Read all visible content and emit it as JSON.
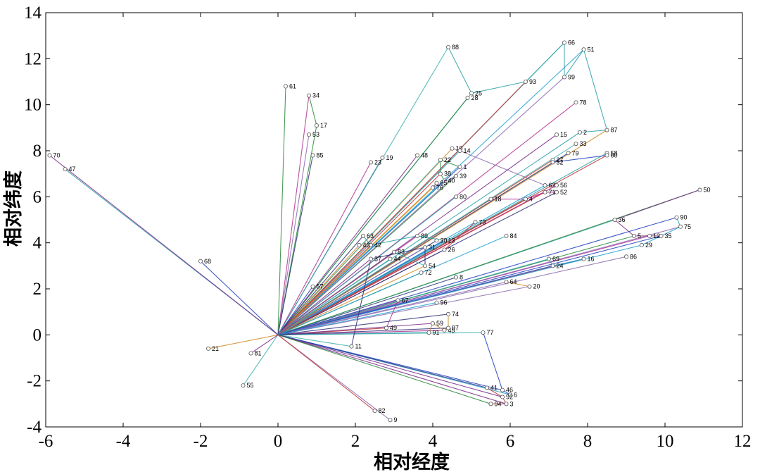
{
  "chart_data": {
    "type": "scatter",
    "xlabel": "相对经度",
    "ylabel": "相对纬度",
    "xlim": [
      -6,
      12
    ],
    "ylim": [
      -4,
      14
    ],
    "xticks": [
      -6,
      -4,
      -2,
      0,
      2,
      4,
      6,
      8,
      10,
      12
    ],
    "yticks": [
      -4,
      -2,
      0,
      2,
      4,
      6,
      8,
      10,
      12,
      14
    ],
    "grid": false,
    "origin": [
      0,
      0
    ],
    "line_colors": [
      "#1f3fbf",
      "#2aa0a8",
      "#7a2a8a",
      "#c03030",
      "#2a8a3a",
      "#1fa0d0",
      "#30307a",
      "#8a6ab0",
      "#d08a20",
      "#40b0b0",
      "#b03090"
    ],
    "points": [
      {
        "label": "1",
        "x": 4.7,
        "y": 7.3
      },
      {
        "label": "2",
        "x": 7.8,
        "y": 8.8
      },
      {
        "label": "3",
        "x": 5.9,
        "y": -3.0
      },
      {
        "label": "4",
        "x": 6.4,
        "y": 5.9
      },
      {
        "label": "5",
        "x": 9.2,
        "y": 4.3
      },
      {
        "label": "6",
        "x": 6.0,
        "y": -2.6
      },
      {
        "label": "8",
        "x": 4.6,
        "y": 2.5
      },
      {
        "label": "9",
        "x": 2.9,
        "y": -3.7
      },
      {
        "label": "10",
        "x": 4.5,
        "y": 8.1
      },
      {
        "label": "11",
        "x": 1.9,
        "y": -0.5
      },
      {
        "label": "12",
        "x": 9.6,
        "y": 4.3
      },
      {
        "label": "13",
        "x": 4.3,
        "y": 4.1
      },
      {
        "label": "14",
        "x": 4.7,
        "y": 8.0
      },
      {
        "label": "15",
        "x": 7.2,
        "y": 8.7
      },
      {
        "label": "16",
        "x": 7.9,
        "y": 3.3
      },
      {
        "label": "17",
        "x": 1.0,
        "y": 9.1
      },
      {
        "label": "18",
        "x": 5.5,
        "y": 5.9
      },
      {
        "label": "19",
        "x": 2.7,
        "y": 7.7
      },
      {
        "label": "20",
        "x": 6.5,
        "y": 2.1
      },
      {
        "label": "21",
        "x": -1.8,
        "y": -0.6
      },
      {
        "label": "22",
        "x": 4.2,
        "y": 7.6
      },
      {
        "label": "23",
        "x": 2.4,
        "y": 7.5
      },
      {
        "label": "24",
        "x": 7.1,
        "y": 3.0
      },
      {
        "label": "25",
        "x": 5.0,
        "y": 10.5
      },
      {
        "label": "26",
        "x": 4.3,
        "y": 3.7
      },
      {
        "label": "27",
        "x": 7.1,
        "y": 7.6
      },
      {
        "label": "28",
        "x": 4.9,
        "y": 10.3
      },
      {
        "label": "29",
        "x": 9.4,
        "y": 3.9
      },
      {
        "label": "30",
        "x": 4.1,
        "y": 4.1
      },
      {
        "label": "31",
        "x": 3.8,
        "y": 3.8
      },
      {
        "label": "32",
        "x": 7.1,
        "y": 7.5
      },
      {
        "label": "33",
        "x": 7.7,
        "y": 8.3
      },
      {
        "label": "34",
        "x": 0.8,
        "y": 10.4
      },
      {
        "label": "35",
        "x": 9.9,
        "y": 4.3
      },
      {
        "label": "36",
        "x": 8.7,
        "y": 5.0
      },
      {
        "label": "37",
        "x": 2.4,
        "y": 3.3
      },
      {
        "label": "38",
        "x": 4.2,
        "y": 7.0
      },
      {
        "label": "39",
        "x": 4.6,
        "y": 6.9
      },
      {
        "label": "40",
        "x": 4.3,
        "y": 6.7
      },
      {
        "label": "41",
        "x": 5.4,
        "y": -2.3
      },
      {
        "label": "42",
        "x": 2.4,
        "y": 3.9
      },
      {
        "label": "43",
        "x": 2.1,
        "y": 3.9
      },
      {
        "label": "44",
        "x": 2.9,
        "y": 3.3
      },
      {
        "label": "45",
        "x": 4.3,
        "y": 0.2
      },
      {
        "label": "46",
        "x": 5.8,
        "y": -2.4
      },
      {
        "label": "47",
        "x": -5.5,
        "y": 7.2
      },
      {
        "label": "48",
        "x": 3.6,
        "y": 7.8
      },
      {
        "label": "49",
        "x": 2.8,
        "y": 0.3
      },
      {
        "label": "50",
        "x": 10.9,
        "y": 6.3
      },
      {
        "label": "51",
        "x": 7.9,
        "y": 12.4
      },
      {
        "label": "52",
        "x": 7.2,
        "y": 6.2
      },
      {
        "label": "53",
        "x": 0.8,
        "y": 8.7
      },
      {
        "label": "54",
        "x": 3.8,
        "y": 3.0
      },
      {
        "label": "55",
        "x": -0.9,
        "y": -2.2
      },
      {
        "label": "56",
        "x": 7.2,
        "y": 6.5
      },
      {
        "label": "57",
        "x": 0.9,
        "y": 2.1
      },
      {
        "label": "58",
        "x": 8.5,
        "y": 7.9
      },
      {
        "label": "59",
        "x": 4.0,
        "y": 0.5
      },
      {
        "label": "60",
        "x": 8.5,
        "y": 7.8
      },
      {
        "label": "61",
        "x": 0.2,
        "y": 10.8
      },
      {
        "label": "62",
        "x": 6.9,
        "y": 6.5
      },
      {
        "label": "63",
        "x": 2.2,
        "y": 4.3
      },
      {
        "label": "64",
        "x": 5.9,
        "y": 2.3
      },
      {
        "label": "65",
        "x": 4.1,
        "y": 6.6
      },
      {
        "label": "66",
        "x": 7.4,
        "y": 12.7
      },
      {
        "label": "67",
        "x": 3.1,
        "y": 1.5
      },
      {
        "label": "68",
        "x": -2.0,
        "y": 3.2
      },
      {
        "label": "69",
        "x": 7.0,
        "y": 3.3
      },
      {
        "label": "70",
        "x": -5.9,
        "y": 7.8
      },
      {
        "label": "71",
        "x": 6.9,
        "y": 6.2
      },
      {
        "label": "72",
        "x": 3.7,
        "y": 2.7
      },
      {
        "label": "73",
        "x": 5.1,
        "y": 4.9
      },
      {
        "label": "74",
        "x": 4.4,
        "y": 0.9
      },
      {
        "label": "75",
        "x": 10.4,
        "y": 4.7
      },
      {
        "label": "76",
        "x": 4.0,
        "y": 6.4
      },
      {
        "label": "77",
        "x": 5.3,
        "y": 0.1
      },
      {
        "label": "78",
        "x": 7.7,
        "y": 10.1
      },
      {
        "label": "79",
        "x": 7.5,
        "y": 7.9
      },
      {
        "label": "80",
        "x": 4.6,
        "y": 6.0
      },
      {
        "label": "81",
        "x": -0.7,
        "y": -0.8
      },
      {
        "label": "82",
        "x": 2.5,
        "y": -3.3
      },
      {
        "label": "83",
        "x": 3.0,
        "y": 3.6
      },
      {
        "label": "84",
        "x": 5.9,
        "y": 4.3
      },
      {
        "label": "85",
        "x": 0.9,
        "y": 7.8
      },
      {
        "label": "86",
        "x": 9.0,
        "y": 3.4
      },
      {
        "label": "87",
        "x": 8.5,
        "y": 8.9
      },
      {
        "label": "88",
        "x": 4.4,
        "y": 12.5
      },
      {
        "label": "89",
        "x": 3.6,
        "y": 4.3
      },
      {
        "label": "90",
        "x": 10.3,
        "y": 5.1
      },
      {
        "label": "91",
        "x": 3.9,
        "y": 0.1
      },
      {
        "label": "92",
        "x": 5.8,
        "y": -2.7
      },
      {
        "label": "93",
        "x": 6.4,
        "y": 11.0
      },
      {
        "label": "94",
        "x": 5.5,
        "y": -3.0
      },
      {
        "label": "96",
        "x": 4.1,
        "y": 1.4
      },
      {
        "label": "97",
        "x": 4.4,
        "y": 0.3
      },
      {
        "label": "99",
        "x": 7.4,
        "y": 11.2
      }
    ],
    "routes": [
      [
        "88",
        "25",
        "93",
        "66",
        "99",
        "51",
        "87",
        "2"
      ],
      [
        "34",
        "17"
      ],
      [
        "10",
        "14",
        "62",
        "56"
      ],
      [
        "18",
        "4",
        "71",
        "52"
      ],
      [
        "36",
        "50"
      ],
      [
        "90",
        "75",
        "29"
      ],
      [
        "74",
        "97",
        "45",
        "59",
        "91"
      ],
      [
        "77",
        "46",
        "6"
      ],
      [
        "41",
        "92",
        "3",
        "94"
      ],
      [
        "11",
        "37",
        "31",
        "54"
      ],
      [
        "83",
        "54"
      ],
      [
        "13",
        "89",
        "42",
        "63"
      ],
      [
        "40",
        "38",
        "22",
        "1"
      ],
      [
        "65",
        "76",
        "39"
      ],
      [
        "49",
        "67"
      ],
      [
        "36",
        "5",
        "12",
        "35"
      ],
      [
        "69",
        "24",
        "16"
      ],
      [
        "64",
        "20"
      ],
      [
        "58",
        "60",
        "32"
      ],
      [
        "73",
        "26"
      ]
    ]
  }
}
